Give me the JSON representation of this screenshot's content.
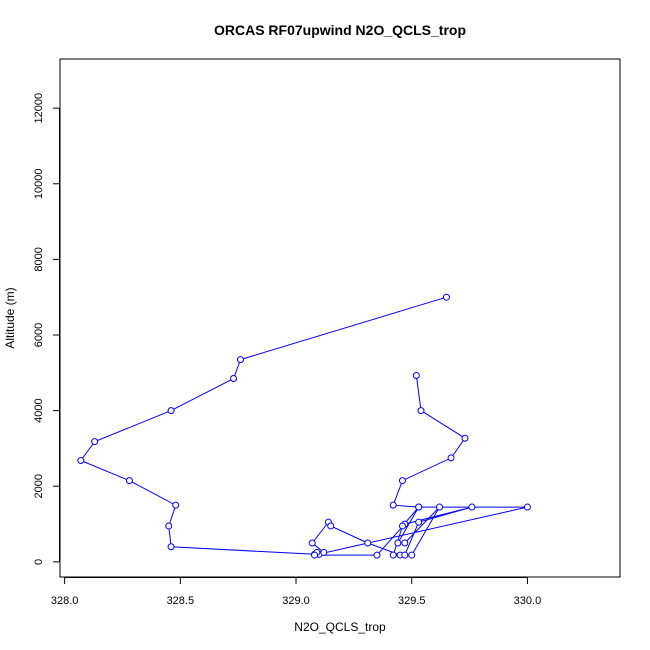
{
  "chart_data": {
    "type": "line",
    "title": "ORCAS RF07upwind N2O_QCLS_trop",
    "xlabel": "N2O_QCLS_trop",
    "ylabel": "Altitude (m)",
    "xlim": [
      327.98,
      330.4
    ],
    "ylim": [
      -400,
      13300
    ],
    "xticks": [
      328.0,
      328.5,
      329.0,
      329.5,
      330.0
    ],
    "xtick_labels": [
      "328.0",
      "328.5",
      "329.0",
      "329.5",
      "330.0"
    ],
    "yticks": [
      0,
      2000,
      4000,
      6000,
      8000,
      10000,
      12000
    ],
    "ytick_labels": [
      "0",
      "2000",
      "4000",
      "6000",
      "8000",
      "10000",
      "12000"
    ],
    "grid": false,
    "series": [
      {
        "color": "#0000ff",
        "marker": "open-circle",
        "x": [
          329.65,
          328.76,
          328.73,
          328.46,
          328.13,
          328.07,
          328.28,
          328.48,
          328.45,
          328.46,
          329.08,
          329.1,
          329.09,
          329.12,
          329.07,
          329.14,
          329.15,
          329.31,
          329.45,
          329.47,
          329.53,
          329.76,
          329.47,
          329.35,
          329.08,
          330.0,
          329.53,
          329.46,
          329.42,
          329.5,
          329.62,
          329.47,
          329.44,
          329.53,
          329.42,
          329.46,
          329.67,
          329.73,
          329.54,
          329.52
        ],
        "y": [
          7000,
          5350,
          4850,
          4000,
          3180,
          2680,
          2150,
          1500,
          950,
          400,
          200,
          200,
          250,
          250,
          500,
          1050,
          950,
          500,
          180,
          180,
          1050,
          1450,
          1000,
          180,
          180,
          1450,
          1450,
          950,
          180,
          180,
          1450,
          500,
          500,
          1450,
          1500,
          2150,
          2750,
          3270,
          4000,
          4930
        ]
      }
    ]
  }
}
